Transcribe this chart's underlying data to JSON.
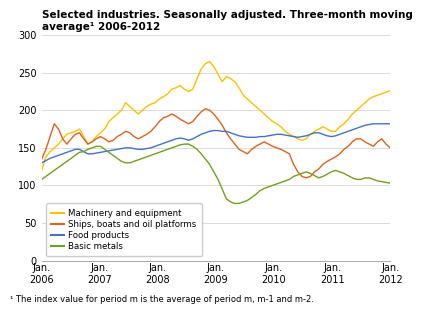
{
  "title_line1": "Selected industries. Seasonally adjusted. Three-month moving",
  "title_line2": "average¹ 2006-2012",
  "footnote": "¹ The index value for period m is the average of period m, m-1 and m-2.",
  "ylim": [
    0,
    300
  ],
  "yticks": [
    0,
    50,
    100,
    150,
    200,
    250,
    300
  ],
  "x_labels": [
    "Jan.\n2006",
    "Jan.\n2007",
    "Jan.\n2008",
    "Jan.\n2009",
    "Jan.\n2010",
    "Jan.\n2011",
    "Jan.\n2012"
  ],
  "legend": [
    {
      "label": "Machinery and equipment",
      "color": "#FFC000"
    },
    {
      "label": "Ships, boats and oil platforms",
      "color": "#E06020"
    },
    {
      "label": "Food products",
      "color": "#4472C4"
    },
    {
      "label": "Basic metals",
      "color": "#70A020"
    }
  ],
  "series": {
    "machinery": {
      "color": "#FFC000",
      "values": [
        120,
        138,
        145,
        150,
        155,
        162,
        168,
        170,
        172,
        175,
        165,
        155,
        158,
        165,
        170,
        175,
        185,
        190,
        195,
        200,
        210,
        205,
        200,
        195,
        200,
        205,
        208,
        210,
        215,
        218,
        222,
        228,
        230,
        233,
        228,
        225,
        228,
        242,
        255,
        262,
        265,
        258,
        248,
        238,
        245,
        242,
        238,
        230,
        220,
        215,
        210,
        205,
        200,
        195,
        190,
        185,
        182,
        178,
        172,
        168,
        165,
        162,
        160,
        162,
        168,
        172,
        175,
        178,
        175,
        172,
        172,
        178,
        182,
        188,
        195,
        200,
        205,
        210,
        215,
        218,
        220,
        222,
        224,
        226
      ]
    },
    "ships": {
      "color": "#E06020",
      "values": [
        135,
        148,
        165,
        182,
        175,
        162,
        155,
        162,
        168,
        170,
        162,
        155,
        158,
        162,
        165,
        162,
        158,
        160,
        165,
        168,
        172,
        170,
        165,
        162,
        165,
        168,
        172,
        178,
        185,
        190,
        192,
        195,
        192,
        188,
        185,
        182,
        185,
        192,
        198,
        202,
        200,
        195,
        188,
        180,
        170,
        162,
        155,
        148,
        145,
        142,
        148,
        152,
        155,
        158,
        155,
        152,
        150,
        148,
        145,
        142,
        128,
        118,
        112,
        110,
        112,
        118,
        122,
        128,
        132,
        135,
        138,
        142,
        148,
        152,
        158,
        162,
        162,
        158,
        155,
        152,
        158,
        162,
        155,
        150
      ]
    },
    "food": {
      "color": "#4472C4",
      "values": [
        130,
        133,
        136,
        138,
        140,
        142,
        144,
        146,
        148,
        148,
        145,
        142,
        142,
        143,
        144,
        145,
        146,
        147,
        148,
        149,
        150,
        150,
        149,
        148,
        148,
        149,
        150,
        152,
        154,
        156,
        158,
        160,
        162,
        163,
        162,
        160,
        162,
        165,
        168,
        170,
        172,
        173,
        173,
        172,
        172,
        170,
        168,
        166,
        165,
        164,
        164,
        164,
        165,
        165,
        166,
        167,
        168,
        168,
        167,
        166,
        165,
        164,
        165,
        166,
        168,
        170,
        170,
        168,
        166,
        165,
        166,
        168,
        170,
        172,
        174,
        176,
        178,
        180,
        181,
        182,
        182,
        182,
        182,
        182
      ]
    },
    "metals": {
      "color": "#70A020",
      "values": [
        108,
        112,
        116,
        120,
        124,
        128,
        132,
        136,
        140,
        144,
        145,
        148,
        150,
        152,
        152,
        148,
        144,
        140,
        136,
        132,
        130,
        130,
        132,
        134,
        136,
        138,
        140,
        142,
        144,
        146,
        148,
        150,
        152,
        154,
        155,
        155,
        152,
        148,
        142,
        135,
        128,
        118,
        108,
        95,
        82,
        78,
        76,
        76,
        78,
        80,
        84,
        88,
        93,
        96,
        98,
        100,
        102,
        104,
        106,
        108,
        112,
        114,
        116,
        118,
        116,
        113,
        110,
        112,
        115,
        118,
        120,
        118,
        116,
        113,
        110,
        108,
        108,
        110,
        110,
        108,
        106,
        105,
        104,
        103
      ]
    }
  }
}
